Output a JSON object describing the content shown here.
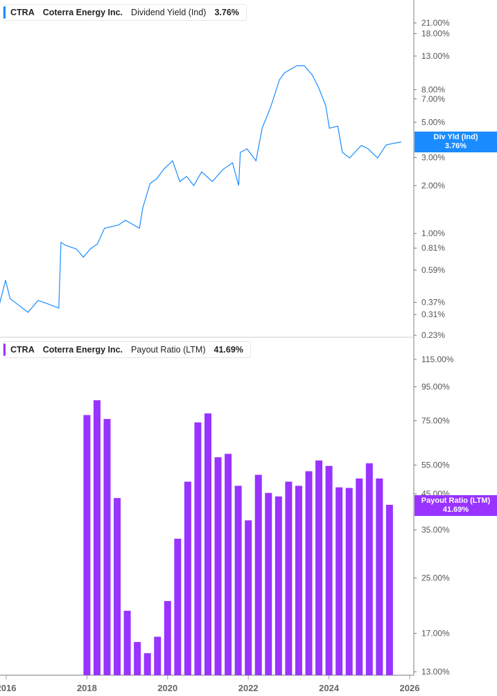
{
  "colors": {
    "yield": "#1a8cff",
    "payout": "#9933ff",
    "axis": "#aaaaaa"
  },
  "top_legend": {
    "ticker": "CTRA",
    "company": "Coterra Energy Inc.",
    "metric": "Dividend Yield (Ind)",
    "value": "3.76%"
  },
  "top_tag": {
    "label": "Div Yld (Ind)",
    "value": "3.76%"
  },
  "bottom_legend": {
    "ticker": "CTRA",
    "company": "Coterra Energy Inc.",
    "metric": "Payout Ratio (LTM)",
    "value": "41.69%"
  },
  "bottom_tag": {
    "label": "Payout Ratio (LTM)",
    "value": "41.69%"
  },
  "chart_data": [
    {
      "type": "line",
      "series_label": "Dividend Yield (Ind)",
      "yscale": "log",
      "ylim": [
        0.22,
        28
      ],
      "yticks": [
        21,
        18,
        13,
        8,
        7,
        5,
        3,
        2,
        1,
        0.81,
        0.59,
        0.37,
        0.31,
        0.23
      ],
      "ytick_labels": [
        "21.00%",
        "18.00%",
        "13.00%",
        "8.00%",
        "7.00%",
        "5.00%",
        "3.00%",
        "2.00%",
        "1.00%",
        "0.81%",
        "0.59%",
        "0.37%",
        "0.31%",
        "0.23%"
      ],
      "x": [
        "2015-11-01",
        "2015-12-25",
        "2016-02-05",
        "2016-04-10",
        "2016-07-15",
        "2016-10-15",
        "2017-01-20",
        "2017-04-20",
        "2017-05-10",
        "2017-06-25",
        "2017-09-28",
        "2017-11-30",
        "2018-02-01",
        "2018-04-05",
        "2018-06-08",
        "2018-10-12",
        "2018-12-15",
        "2019-04-20",
        "2019-05-20",
        "2019-07-25",
        "2019-09-25",
        "2019-11-25",
        "2020-02-15",
        "2020-04-20",
        "2020-06-20",
        "2020-08-25",
        "2020-11-05",
        "2021-02-10",
        "2021-05-15",
        "2021-08-10",
        "2021-10-05",
        "2021-10-20",
        "2021-12-20",
        "2022-03-10",
        "2022-05-05",
        "2022-07-20",
        "2022-10-10",
        "2022-11-25",
        "2023-03-15",
        "2023-05-20",
        "2023-08-01",
        "2023-09-25",
        "2023-12-01",
        "2024-01-05",
        "2024-03-20",
        "2024-05-01",
        "2024-07-05",
        "2024-10-20",
        "2024-12-20",
        "2025-03-15",
        "2025-06-01",
        "2025-10-15"
      ],
      "values": [
        0.36,
        0.51,
        0.39,
        0.36,
        0.32,
        0.38,
        0.36,
        0.34,
        0.88,
        0.84,
        0.8,
        0.71,
        0.8,
        0.86,
        1.08,
        1.13,
        1.21,
        1.08,
        1.45,
        2.06,
        2.21,
        2.52,
        2.86,
        2.12,
        2.28,
        2.0,
        2.44,
        2.12,
        2.52,
        2.78,
        2.0,
        3.23,
        3.4,
        2.86,
        4.58,
        6.19,
        9.24,
        10.2,
        11.3,
        11.3,
        9.9,
        8.36,
        6.38,
        4.58,
        4.72,
        3.23,
        2.98,
        3.57,
        3.4,
        2.98,
        3.6,
        3.76
      ]
    },
    {
      "type": "bar",
      "series_label": "Payout Ratio (LTM)",
      "yscale": "log",
      "ylim": [
        12.6,
        135
      ],
      "yticks": [
        115,
        95,
        75,
        55,
        45,
        35,
        25,
        17,
        13
      ],
      "ytick_labels": [
        "115.00%",
        "95.00%",
        "75.00%",
        "55.00%",
        "45.00%",
        "35.00%",
        "25.00%",
        "17.00%",
        "13.00%"
      ],
      "x": [
        "2018-01",
        "2018-04",
        "2018-07",
        "2018-10",
        "2019-01",
        "2019-04",
        "2019-07",
        "2019-10",
        "2020-01",
        "2020-04",
        "2020-07",
        "2020-10",
        "2021-01",
        "2021-04",
        "2021-07",
        "2021-10",
        "2022-01",
        "2022-04",
        "2022-07",
        "2022-10",
        "2023-01",
        "2023-04",
        "2023-07",
        "2023-10",
        "2024-01",
        "2024-04",
        "2024-07",
        "2024-10",
        "2025-01",
        "2025-04",
        "2025-07"
      ],
      "values": [
        78,
        86.5,
        75.9,
        43.7,
        19.9,
        16.0,
        14.8,
        16.6,
        21.3,
        32.9,
        49.0,
        74.1,
        78.9,
        58.1,
        59.5,
        47.6,
        37.4,
        51.4,
        45.3,
        44.2,
        49.0,
        47.6,
        52.7,
        56.8,
        54.7,
        47.1,
        46.9,
        50.1,
        55.7,
        50.1,
        41.69
      ]
    }
  ],
  "x_axis": {
    "ticks": [
      2016,
      2018,
      2020,
      2022,
      2024,
      2026
    ],
    "labels": [
      "2016",
      "2018",
      "2020",
      "2022",
      "2024",
      "2026"
    ]
  }
}
